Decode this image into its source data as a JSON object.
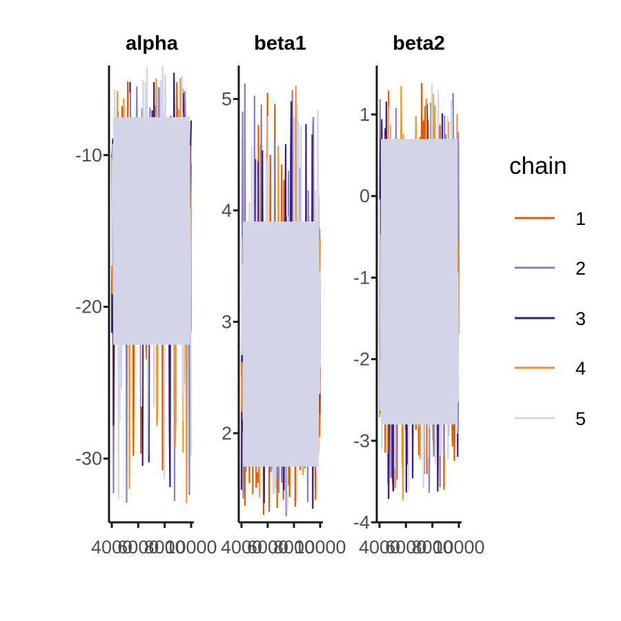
{
  "chart_data": {
    "type": "line",
    "kind": "MCMC trace plot (faceted)",
    "legend": {
      "title": "chain",
      "placement": "right",
      "entries": [
        {
          "name": "1",
          "color": "#d95f02"
        },
        {
          "name": "2",
          "color": "#8c7fc0"
        },
        {
          "name": "3",
          "color": "#3f1c78"
        },
        {
          "name": "4",
          "color": "#f0952f"
        },
        {
          "name": "5",
          "color": "#d2d4e8"
        }
      ]
    },
    "grid": false,
    "x_axis": {
      "range": [
        4000,
        10000
      ],
      "ticks": [
        4000,
        6000,
        8000,
        10000
      ],
      "tick_labels": [
        "4000",
        "6000",
        "8000",
        "10000"
      ]
    },
    "facets": [
      {
        "title": "alpha",
        "y_range": [
          -34.2,
          -4.1
        ],
        "y_ticks": [
          -10,
          -20,
          -30
        ],
        "y_tick_labels": [
          "-10",
          "-20",
          "-30"
        ],
        "band_core": [
          -22.5,
          -7.5
        ],
        "band_upper_max": -4.1,
        "band_lower_min": -33.0,
        "seed": 11
      },
      {
        "title": "beta1",
        "y_range": [
          1.2,
          5.3
        ],
        "y_ticks": [
          2,
          3,
          4,
          5
        ],
        "y_tick_labels": [
          "2",
          "3",
          "4",
          "5"
        ],
        "band_core": [
          1.7,
          3.9
        ],
        "band_upper_max": 5.14,
        "band_lower_min": 1.25,
        "seed": 23
      },
      {
        "title": "beta2",
        "y_range": [
          -4.0,
          1.6
        ],
        "y_ticks": [
          1,
          0,
          -1,
          -2,
          -3,
          -4
        ],
        "y_tick_labels": [
          "1",
          "0",
          "-1",
          "-2",
          "-3",
          "-4"
        ],
        "band_core": [
          -2.8,
          0.7
        ],
        "band_upper_max": 1.43,
        "band_lower_min": -3.75,
        "seed": 37
      }
    ]
  }
}
